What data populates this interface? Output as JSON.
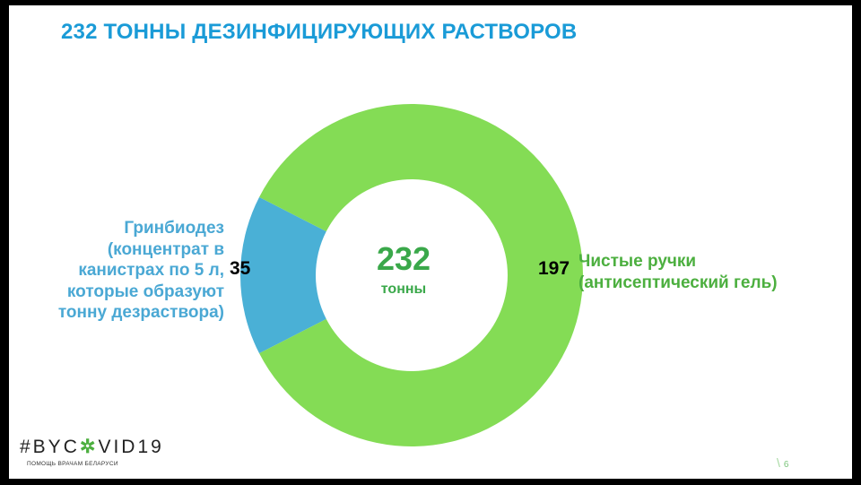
{
  "title": "232 ТОННЫ ДЕЗИНФИЦИРУЮЩИХ РАСТВОРОВ",
  "chart_data": {
    "type": "pie",
    "donut": true,
    "title": "232 ТОННЫ ДЕЗИНФИЦИРУЮЩИХ РАСТВОРОВ",
    "center_value": "232",
    "center_unit": "тонны",
    "slices": [
      {
        "label_lines": [
          "Гринбиодез",
          "(концентрат в",
          "канистрах по 5 л,",
          "которые образуют",
          "тонну дезраствора)"
        ],
        "value": 35,
        "value_label": "35",
        "color": "#4ab0d6"
      },
      {
        "label_lines": [
          "Чистые ручки",
          "(антисептический гель)"
        ],
        "value": 197,
        "value_label": "197",
        "color": "#84dc55"
      }
    ]
  },
  "footer": {
    "logo_prefix": "#BYC",
    "logo_gear": "✲",
    "logo_suffix": "VID19",
    "tagline": "ПОМОЩЬ ВРАЧАМ БЕЛАРУСИ",
    "page_slash": "\\",
    "page_number": "6"
  }
}
